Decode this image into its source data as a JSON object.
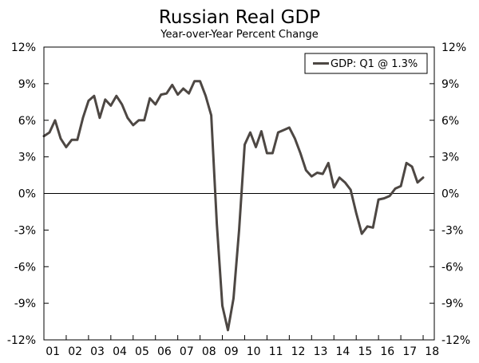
{
  "chart_data": {
    "type": "line",
    "title": "Russian Real GDP",
    "subtitle": "Year-over-Year Percent Change",
    "xlabel": "",
    "ylabel": "",
    "ylim": [
      -12,
      12
    ],
    "yticks": [
      "12%",
      "9%",
      "6%",
      "3%",
      "0%",
      "-3%",
      "-6%",
      "-9%",
      "-12%"
    ],
    "ytick_values": [
      12,
      9,
      6,
      3,
      0,
      -3,
      -6,
      -9,
      -12
    ],
    "xticks": [
      "01",
      "02",
      "03",
      "04",
      "05",
      "06",
      "07",
      "08",
      "09",
      "10",
      "11",
      "12",
      "13",
      "14",
      "15",
      "16",
      "17",
      "18"
    ],
    "xlim": [
      2001,
      2018.5
    ],
    "legend": {
      "label": "GDP: Q1 @ 1.3%",
      "position": "top-right"
    },
    "series": [
      {
        "name": "GDP: Q1 @ 1.3%",
        "color": "#4d4743",
        "x": [
          2001.0,
          2001.25,
          2001.5,
          2001.75,
          2002.0,
          2002.25,
          2002.5,
          2002.75,
          2003.0,
          2003.25,
          2003.5,
          2003.75,
          2004.0,
          2004.25,
          2004.5,
          2004.75,
          2005.0,
          2005.25,
          2005.5,
          2005.75,
          2006.0,
          2006.25,
          2006.5,
          2006.75,
          2007.0,
          2007.25,
          2007.5,
          2007.75,
          2008.0,
          2008.25,
          2008.5,
          2008.75,
          2009.0,
          2009.25,
          2009.5,
          2009.75,
          2010.0,
          2010.25,
          2010.5,
          2010.75,
          2011.0,
          2011.25,
          2011.5,
          2011.75,
          2012.0,
          2012.25,
          2012.5,
          2012.75,
          2013.0,
          2013.25,
          2013.5,
          2013.75,
          2014.0,
          2014.25,
          2014.5,
          2014.75,
          2015.0,
          2015.25,
          2015.5,
          2015.75,
          2016.0,
          2016.25,
          2016.5,
          2016.75,
          2017.0,
          2017.25,
          2017.5,
          2017.75,
          2018.0
        ],
        "values": [
          4.7,
          5.0,
          6.0,
          4.5,
          3.8,
          4.4,
          4.4,
          6.2,
          7.6,
          8.0,
          6.2,
          7.7,
          7.2,
          8.0,
          7.3,
          6.2,
          5.6,
          6.0,
          6.0,
          7.8,
          7.3,
          8.1,
          8.2,
          8.9,
          8.1,
          8.6,
          8.2,
          9.2,
          9.2,
          8.0,
          6.4,
          -2.5,
          -9.2,
          -11.2,
          -8.6,
          -3.0,
          4.0,
          5.0,
          3.8,
          5.1,
          3.3,
          3.3,
          5.0,
          5.2,
          5.4,
          4.5,
          3.3,
          1.9,
          1.4,
          1.7,
          1.6,
          2.5,
          0.5,
          1.3,
          0.9,
          0.3,
          -1.6,
          -3.3,
          -2.7,
          -2.8,
          -0.5,
          -0.4,
          -0.2,
          0.4,
          0.6,
          2.5,
          2.2,
          0.9,
          1.3
        ]
      }
    ]
  }
}
